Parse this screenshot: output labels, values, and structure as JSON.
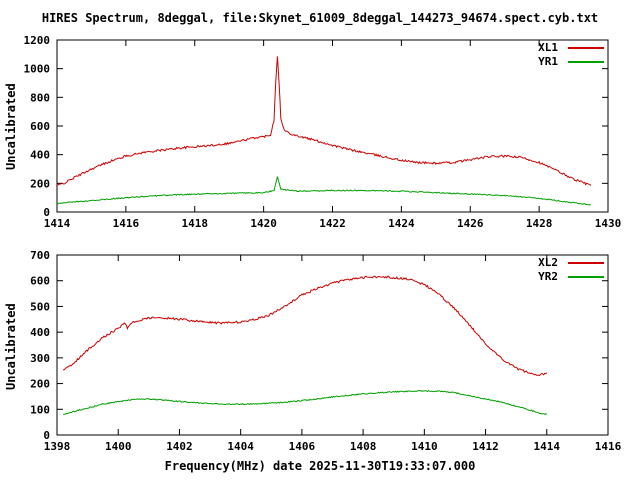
{
  "title": "HIRES Spectrum, 8deggal, file:Skynet_61009_8deggal_144273_94674.spect.cyb.txt",
  "xlabel": "Frequency(MHz) date 2025-11-30T19:33:07.000",
  "colors": {
    "red": "#cc0000",
    "green": "#00a000",
    "axis": "#000000"
  },
  "chart_data": [
    {
      "type": "line",
      "ylabel": "Uncalibrated",
      "xlim": [
        1414,
        1430
      ],
      "ylim": [
        0,
        1200
      ],
      "xticks": [
        1414,
        1416,
        1418,
        1420,
        1422,
        1424,
        1426,
        1428,
        1430
      ],
      "yticks": [
        0,
        200,
        400,
        600,
        800,
        1000,
        1200
      ],
      "grid": false,
      "legend_position": "top-right",
      "series": [
        {
          "name": "XL1",
          "color": "#cc0000",
          "points": [
            [
              1414.0,
              185
            ],
            [
              1414.2,
              200
            ],
            [
              1414.5,
              240
            ],
            [
              1415.0,
              300
            ],
            [
              1415.5,
              350
            ],
            [
              1416.0,
              390
            ],
            [
              1416.5,
              415
            ],
            [
              1417.0,
              430
            ],
            [
              1417.5,
              445
            ],
            [
              1418.0,
              455
            ],
            [
              1418.5,
              465
            ],
            [
              1419.0,
              480
            ],
            [
              1419.5,
              505
            ],
            [
              1419.8,
              520
            ],
            [
              1420.0,
              525
            ],
            [
              1420.2,
              540
            ],
            [
              1420.3,
              640
            ],
            [
              1420.35,
              900
            ],
            [
              1420.4,
              1090
            ],
            [
              1420.45,
              900
            ],
            [
              1420.5,
              650
            ],
            [
              1420.6,
              570
            ],
            [
              1420.8,
              545
            ],
            [
              1421.0,
              530
            ],
            [
              1421.5,
              500
            ],
            [
              1422.0,
              465
            ],
            [
              1422.5,
              435
            ],
            [
              1423.0,
              410
            ],
            [
              1423.5,
              385
            ],
            [
              1424.0,
              360
            ],
            [
              1424.5,
              345
            ],
            [
              1425.0,
              340
            ],
            [
              1425.5,
              345
            ],
            [
              1426.0,
              365
            ],
            [
              1426.5,
              385
            ],
            [
              1427.0,
              390
            ],
            [
              1427.5,
              380
            ],
            [
              1428.0,
              345
            ],
            [
              1428.5,
              290
            ],
            [
              1429.0,
              230
            ],
            [
              1429.5,
              185
            ]
          ]
        },
        {
          "name": "YR1",
          "color": "#00a000",
          "points": [
            [
              1414.0,
              60
            ],
            [
              1414.5,
              70
            ],
            [
              1415.0,
              80
            ],
            [
              1415.5,
              90
            ],
            [
              1416.0,
              100
            ],
            [
              1417.0,
              115
            ],
            [
              1418.0,
              125
            ],
            [
              1419.0,
              130
            ],
            [
              1420.0,
              135
            ],
            [
              1420.3,
              150
            ],
            [
              1420.4,
              250
            ],
            [
              1420.5,
              160
            ],
            [
              1421.0,
              145
            ],
            [
              1422.0,
              150
            ],
            [
              1423.0,
              150
            ],
            [
              1424.0,
              145
            ],
            [
              1425.0,
              135
            ],
            [
              1426.0,
              125
            ],
            [
              1427.0,
              115
            ],
            [
              1428.0,
              95
            ],
            [
              1428.5,
              80
            ],
            [
              1429.0,
              65
            ],
            [
              1429.5,
              50
            ]
          ]
        }
      ]
    },
    {
      "type": "line",
      "ylabel": "Uncalibrated",
      "xlim": [
        1398,
        1416
      ],
      "ylim": [
        0,
        700
      ],
      "xticks": [
        1398,
        1400,
        1402,
        1404,
        1406,
        1408,
        1410,
        1412,
        1414,
        1416
      ],
      "yticks": [
        0,
        100,
        200,
        300,
        400,
        500,
        600,
        700
      ],
      "grid": false,
      "legend_position": "top-right",
      "series": [
        {
          "name": "XL2",
          "color": "#cc0000",
          "points": [
            [
              1398.2,
              250
            ],
            [
              1398.5,
              275
            ],
            [
              1399.0,
              330
            ],
            [
              1399.5,
              380
            ],
            [
              1400.0,
              415
            ],
            [
              1400.2,
              435
            ],
            [
              1400.3,
              418
            ],
            [
              1400.5,
              440
            ],
            [
              1401.0,
              455
            ],
            [
              1401.5,
              455
            ],
            [
              1402.0,
              450
            ],
            [
              1402.5,
              443
            ],
            [
              1403.0,
              438
            ],
            [
              1403.5,
              435
            ],
            [
              1404.0,
              440
            ],
            [
              1404.5,
              450
            ],
            [
              1405.0,
              470
            ],
            [
              1405.5,
              505
            ],
            [
              1406.0,
              545
            ],
            [
              1406.5,
              570
            ],
            [
              1407.0,
              590
            ],
            [
              1407.5,
              605
            ],
            [
              1408.0,
              612
            ],
            [
              1408.5,
              615
            ],
            [
              1409.0,
              612
            ],
            [
              1409.5,
              605
            ],
            [
              1410.0,
              585
            ],
            [
              1410.5,
              545
            ],
            [
              1411.0,
              490
            ],
            [
              1411.5,
              425
            ],
            [
              1412.0,
              355
            ],
            [
              1412.5,
              300
            ],
            [
              1413.0,
              260
            ],
            [
              1413.5,
              238
            ],
            [
              1413.8,
              235
            ],
            [
              1414.0,
              242
            ]
          ]
        },
        {
          "name": "YR2",
          "color": "#00a000",
          "points": [
            [
              1398.2,
              80
            ],
            [
              1398.5,
              90
            ],
            [
              1399.0,
              105
            ],
            [
              1399.5,
              120
            ],
            [
              1400.0,
              130
            ],
            [
              1400.5,
              138
            ],
            [
              1401.0,
              140
            ],
            [
              1401.5,
              136
            ],
            [
              1402.0,
              130
            ],
            [
              1402.5,
              126
            ],
            [
              1403.0,
              122
            ],
            [
              1403.5,
              120
            ],
            [
              1404.0,
              120
            ],
            [
              1404.5,
              121
            ],
            [
              1405.0,
              124
            ],
            [
              1405.5,
              128
            ],
            [
              1406.0,
              134
            ],
            [
              1406.5,
              140
            ],
            [
              1407.0,
              148
            ],
            [
              1407.5,
              154
            ],
            [
              1408.0,
              160
            ],
            [
              1408.5,
              164
            ],
            [
              1409.0,
              168
            ],
            [
              1409.5,
              170
            ],
            [
              1410.0,
              171
            ],
            [
              1410.5,
              170
            ],
            [
              1411.0,
              164
            ],
            [
              1411.5,
              152
            ],
            [
              1412.0,
              140
            ],
            [
              1412.5,
              128
            ],
            [
              1413.0,
              112
            ],
            [
              1413.5,
              95
            ],
            [
              1413.8,
              84
            ],
            [
              1414.0,
              80
            ]
          ]
        }
      ]
    }
  ]
}
